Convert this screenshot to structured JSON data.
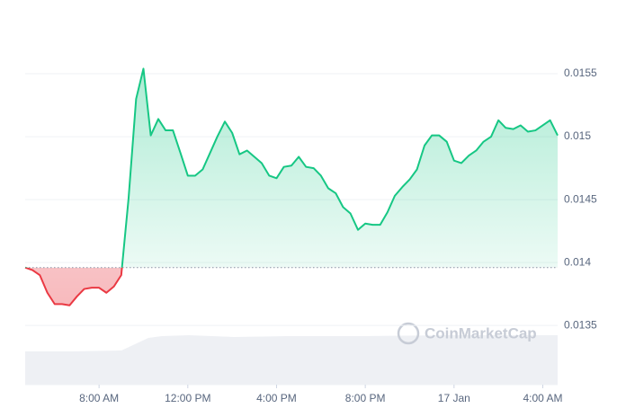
{
  "chart_data": {
    "type": "line",
    "watermark": "CoinMarketCap",
    "x": [
      4.67,
      5,
      5.33,
      5.67,
      6,
      6.33,
      6.67,
      7,
      7.33,
      7.67,
      8,
      8.33,
      8.67,
      9,
      9.33,
      9.67,
      10,
      10.33,
      10.67,
      11,
      11.33,
      11.67,
      12,
      12.33,
      12.67,
      13,
      13.33,
      13.67,
      14,
      14.33,
      14.67,
      15,
      15.33,
      15.67,
      16,
      16.33,
      16.67,
      17,
      17.33,
      17.67,
      18,
      18.33,
      18.67,
      19,
      19.33,
      19.67,
      20,
      20.33,
      20.67,
      21,
      21.33,
      21.67,
      22,
      22.33,
      22.67,
      23,
      23.33,
      23.67,
      24,
      24.33,
      24.67,
      25,
      25.33,
      25.67,
      26,
      26.33,
      26.67,
      27,
      27.33,
      27.67,
      28,
      28.33,
      28.67
    ],
    "values": [
      0.01396,
      0.01394,
      0.0139,
      0.01376,
      0.01367,
      0.01367,
      0.01366,
      0.01373,
      0.01379,
      0.0138,
      0.0138,
      0.01376,
      0.01381,
      0.0139,
      0.01451,
      0.0153,
      0.01554,
      0.01501,
      0.01514,
      0.01505,
      0.01505,
      0.01487,
      0.01469,
      0.01469,
      0.01474,
      0.01487,
      0.015,
      0.01512,
      0.01503,
      0.01486,
      0.01489,
      0.01484,
      0.01479,
      0.01469,
      0.01467,
      0.01476,
      0.01477,
      0.01484,
      0.01476,
      0.01475,
      0.01469,
      0.01459,
      0.01455,
      0.01444,
      0.01439,
      0.01426,
      0.01431,
      0.0143,
      0.0143,
      0.0144,
      0.01453,
      0.0146,
      0.01466,
      0.01474,
      0.01493,
      0.01501,
      0.01501,
      0.01496,
      0.01481,
      0.01479,
      0.01485,
      0.01489,
      0.01496,
      0.015,
      0.01513,
      0.01507,
      0.01506,
      0.01509,
      0.01504,
      0.01505,
      0.01509,
      0.01513,
      0.01501
    ],
    "baseline": 0.01396,
    "up_color": "#16c784",
    "down_color": "#ea3943",
    "xlim": [
      4.67,
      28.67
    ],
    "xticks": [
      {
        "value": 8,
        "label": "8:00 AM"
      },
      {
        "value": 12,
        "label": "12:00 PM"
      },
      {
        "value": 16,
        "label": "4:00 PM"
      },
      {
        "value": 20,
        "label": "8:00 PM"
      },
      {
        "value": 24,
        "label": "17 Jan"
      },
      {
        "value": 28,
        "label": "4:00 AM"
      }
    ],
    "ylim": [
      0.01303,
      0.016
    ],
    "yticks": [
      0.0135,
      0.014,
      0.0145,
      0.015,
      0.0155
    ],
    "grid": true
  }
}
